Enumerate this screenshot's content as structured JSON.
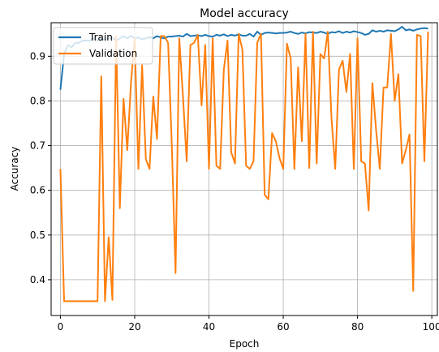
{
  "chart_data": {
    "type": "line",
    "title": "Model accuracy",
    "xlabel": "Epoch",
    "ylabel": "Accuracy",
    "xlim": [
      -2.5,
      101.5
    ],
    "ylim": [
      0.32,
      0.975
    ],
    "xticks": [
      0,
      20,
      40,
      60,
      80,
      100
    ],
    "yticks": [
      0.4,
      0.5,
      0.6,
      0.7,
      0.8,
      0.9
    ],
    "grid": true,
    "legend": "upper left",
    "colors": {
      "train": "#1f77b4",
      "validation": "#ff7f0e"
    },
    "series": [
      {
        "name": "Train",
        "values": [
          0.825,
          0.905,
          0.925,
          0.92,
          0.93,
          0.93,
          0.935,
          0.935,
          0.935,
          0.94,
          0.935,
          0.94,
          0.937,
          0.94,
          0.942,
          0.935,
          0.94,
          0.945,
          0.94,
          0.946,
          0.94,
          0.942,
          0.938,
          0.94,
          0.943,
          0.94,
          0.945,
          0.942,
          0.94,
          0.944,
          0.944,
          0.945,
          0.946,
          0.944,
          0.95,
          0.945,
          0.946,
          0.947,
          0.945,
          0.948,
          0.945,
          0.944,
          0.948,
          0.946,
          0.949,
          0.945,
          0.948,
          0.946,
          0.949,
          0.946,
          0.946,
          0.95,
          0.944,
          0.955,
          0.948,
          0.952,
          0.953,
          0.952,
          0.951,
          0.952,
          0.952,
          0.953,
          0.955,
          0.952,
          0.95,
          0.953,
          0.951,
          0.954,
          0.953,
          0.952,
          0.955,
          0.953,
          0.95,
          0.954,
          0.953,
          0.956,
          0.952,
          0.955,
          0.953,
          0.956,
          0.954,
          0.952,
          0.948,
          0.95,
          0.958,
          0.955,
          0.957,
          0.955,
          0.958,
          0.957,
          0.956,
          0.96,
          0.966,
          0.958,
          0.96,
          0.957,
          0.96,
          0.962,
          0.963,
          0.962
        ]
      },
      {
        "name": "Validation",
        "values": [
          0.648,
          0.352,
          0.352,
          0.352,
          0.352,
          0.352,
          0.352,
          0.352,
          0.352,
          0.352,
          0.352,
          0.855,
          0.352,
          0.495,
          0.355,
          0.945,
          0.56,
          0.805,
          0.69,
          0.84,
          0.94,
          0.648,
          0.88,
          0.67,
          0.648,
          0.81,
          0.715,
          0.945,
          0.945,
          0.93,
          0.7,
          0.415,
          0.94,
          0.81,
          0.665,
          0.925,
          0.93,
          0.948,
          0.79,
          0.925,
          0.648,
          0.94,
          0.655,
          0.648,
          0.87,
          0.935,
          0.685,
          0.66,
          0.95,
          0.915,
          0.655,
          0.648,
          0.665,
          0.93,
          0.95,
          0.59,
          0.58,
          0.728,
          0.71,
          0.672,
          0.648,
          0.928,
          0.895,
          0.648,
          0.875,
          0.71,
          0.95,
          0.65,
          0.955,
          0.66,
          0.905,
          0.895,
          0.955,
          0.76,
          0.648,
          0.87,
          0.89,
          0.82,
          0.905,
          0.648,
          0.94,
          0.665,
          0.66,
          0.555,
          0.84,
          0.735,
          0.648,
          0.83,
          0.83,
          0.95,
          0.8,
          0.86,
          0.66,
          0.69,
          0.725,
          0.375,
          0.948,
          0.945,
          0.665,
          0.955
        ]
      }
    ]
  }
}
